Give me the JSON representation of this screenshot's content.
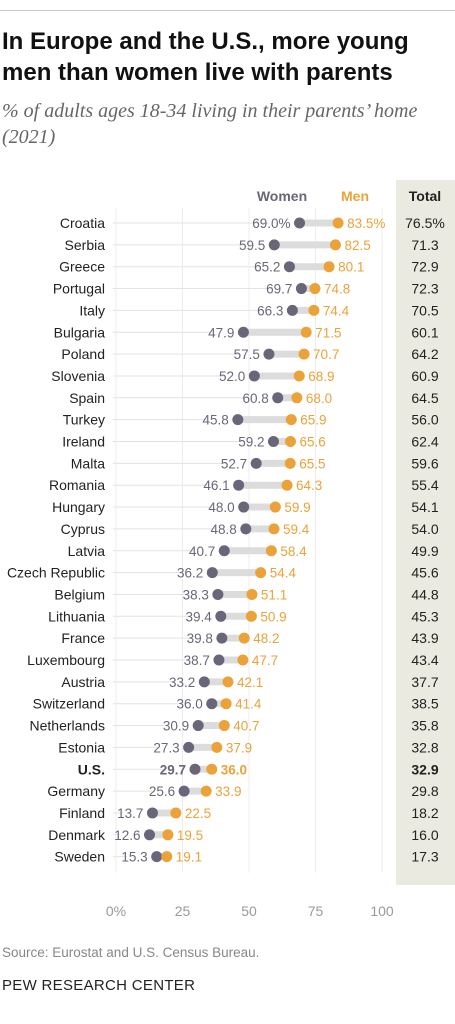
{
  "title": "In Europe and the U.S., more young men than women live with parents",
  "subtitle": "% of adults ages 18-34 living in their parents’ home (2021)",
  "source": "Source: Eurostat and U.S. Census Bureau.",
  "organization": "PEW RESEARCH CENTER",
  "colors": {
    "women": "#6b6579",
    "men": "#eba239",
    "total_bg": "#ebeae0",
    "connector": "#dcdcdc"
  },
  "chart_data": {
    "type": "dot",
    "legend": {
      "women": "Women",
      "men": "Men",
      "total": "Total"
    },
    "x_ticks": [
      "0%",
      "25",
      "50",
      "75",
      "100"
    ],
    "xlim": [
      0,
      100
    ],
    "grid": true,
    "rows": [
      {
        "country": "Croatia",
        "women": 69.0,
        "men": 83.5,
        "total": 76.5,
        "women_label": "69.0%",
        "men_label": "83.5%",
        "total_label": "76.5%",
        "highlight": false
      },
      {
        "country": "Serbia",
        "women": 59.5,
        "men": 82.5,
        "total": 71.3,
        "women_label": "59.5",
        "men_label": "82.5",
        "total_label": "71.3",
        "highlight": false
      },
      {
        "country": "Greece",
        "women": 65.2,
        "men": 80.1,
        "total": 72.9,
        "women_label": "65.2",
        "men_label": "80.1",
        "total_label": "72.9",
        "highlight": false
      },
      {
        "country": "Portugal",
        "women": 69.7,
        "men": 74.8,
        "total": 72.3,
        "women_label": "69.7",
        "men_label": "74.8",
        "total_label": "72.3",
        "highlight": false
      },
      {
        "country": "Italy",
        "women": 66.3,
        "men": 74.4,
        "total": 70.5,
        "women_label": "66.3",
        "men_label": "74.4",
        "total_label": "70.5",
        "highlight": false
      },
      {
        "country": "Bulgaria",
        "women": 47.9,
        "men": 71.5,
        "total": 60.1,
        "women_label": "47.9",
        "men_label": "71.5",
        "total_label": "60.1",
        "highlight": false
      },
      {
        "country": "Poland",
        "women": 57.5,
        "men": 70.7,
        "total": 64.2,
        "women_label": "57.5",
        "men_label": "70.7",
        "total_label": "64.2",
        "highlight": false
      },
      {
        "country": "Slovenia",
        "women": 52.0,
        "men": 68.9,
        "total": 60.9,
        "women_label": "52.0",
        "men_label": "68.9",
        "total_label": "60.9",
        "highlight": false
      },
      {
        "country": "Spain",
        "women": 60.8,
        "men": 68.0,
        "total": 64.5,
        "women_label": "60.8",
        "men_label": "68.0",
        "total_label": "64.5",
        "highlight": false
      },
      {
        "country": "Turkey",
        "women": 45.8,
        "men": 65.9,
        "total": 56.0,
        "women_label": "45.8",
        "men_label": "65.9",
        "total_label": "56.0",
        "highlight": false
      },
      {
        "country": "Ireland",
        "women": 59.2,
        "men": 65.6,
        "total": 62.4,
        "women_label": "59.2",
        "men_label": "65.6",
        "total_label": "62.4",
        "highlight": false
      },
      {
        "country": "Malta",
        "women": 52.7,
        "men": 65.5,
        "total": 59.6,
        "women_label": "52.7",
        "men_label": "65.5",
        "total_label": "59.6",
        "highlight": false
      },
      {
        "country": "Romania",
        "women": 46.1,
        "men": 64.3,
        "total": 55.4,
        "women_label": "46.1",
        "men_label": "64.3",
        "total_label": "55.4",
        "highlight": false
      },
      {
        "country": "Hungary",
        "women": 48.0,
        "men": 59.9,
        "total": 54.1,
        "women_label": "48.0",
        "men_label": "59.9",
        "total_label": "54.1",
        "highlight": false
      },
      {
        "country": "Cyprus",
        "women": 48.8,
        "men": 59.4,
        "total": 54.0,
        "women_label": "48.8",
        "men_label": "59.4",
        "total_label": "54.0",
        "highlight": false
      },
      {
        "country": "Latvia",
        "women": 40.7,
        "men": 58.4,
        "total": 49.9,
        "women_label": "40.7",
        "men_label": "58.4",
        "total_label": "49.9",
        "highlight": false
      },
      {
        "country": "Czech Republic",
        "women": 36.2,
        "men": 54.4,
        "total": 45.6,
        "women_label": "36.2",
        "men_label": "54.4",
        "total_label": "45.6",
        "highlight": false
      },
      {
        "country": "Belgium",
        "women": 38.3,
        "men": 51.1,
        "total": 44.8,
        "women_label": "38.3",
        "men_label": "51.1",
        "total_label": "44.8",
        "highlight": false
      },
      {
        "country": "Lithuania",
        "women": 39.4,
        "men": 50.9,
        "total": 45.3,
        "women_label": "39.4",
        "men_label": "50.9",
        "total_label": "45.3",
        "highlight": false
      },
      {
        "country": "France",
        "women": 39.8,
        "men": 48.2,
        "total": 43.9,
        "women_label": "39.8",
        "men_label": "48.2",
        "total_label": "43.9",
        "highlight": false
      },
      {
        "country": "Luxembourg",
        "women": 38.7,
        "men": 47.7,
        "total": 43.4,
        "women_label": "38.7",
        "men_label": "47.7",
        "total_label": "43.4",
        "highlight": false
      },
      {
        "country": "Austria",
        "women": 33.2,
        "men": 42.1,
        "total": 37.7,
        "women_label": "33.2",
        "men_label": "42.1",
        "total_label": "37.7",
        "highlight": false
      },
      {
        "country": "Switzerland",
        "women": 36.0,
        "men": 41.4,
        "total": 38.5,
        "women_label": "36.0",
        "men_label": "41.4",
        "total_label": "38.5",
        "highlight": false
      },
      {
        "country": "Netherlands",
        "women": 30.9,
        "men": 40.7,
        "total": 35.8,
        "women_label": "30.9",
        "men_label": "40.7",
        "total_label": "35.8",
        "highlight": false
      },
      {
        "country": "Estonia",
        "women": 27.3,
        "men": 37.9,
        "total": 32.8,
        "women_label": "27.3",
        "men_label": "37.9",
        "total_label": "32.8",
        "highlight": false
      },
      {
        "country": "U.S.",
        "women": 29.7,
        "men": 36.0,
        "total": 32.9,
        "women_label": "29.7",
        "men_label": "36.0",
        "total_label": "32.9",
        "highlight": true
      },
      {
        "country": "Germany",
        "women": 25.6,
        "men": 33.9,
        "total": 29.8,
        "women_label": "25.6",
        "men_label": "33.9",
        "total_label": "29.8",
        "highlight": false
      },
      {
        "country": "Finland",
        "women": 13.7,
        "men": 22.5,
        "total": 18.2,
        "women_label": "13.7",
        "men_label": "22.5",
        "total_label": "18.2",
        "highlight": false
      },
      {
        "country": "Denmark",
        "women": 12.6,
        "men": 19.5,
        "total": 16.0,
        "women_label": "12.6",
        "men_label": "19.5",
        "total_label": "16.0",
        "highlight": false
      },
      {
        "country": "Sweden",
        "women": 15.3,
        "men": 19.1,
        "total": 17.3,
        "women_label": "15.3",
        "men_label": "19.1",
        "total_label": "17.3",
        "highlight": false
      }
    ]
  }
}
